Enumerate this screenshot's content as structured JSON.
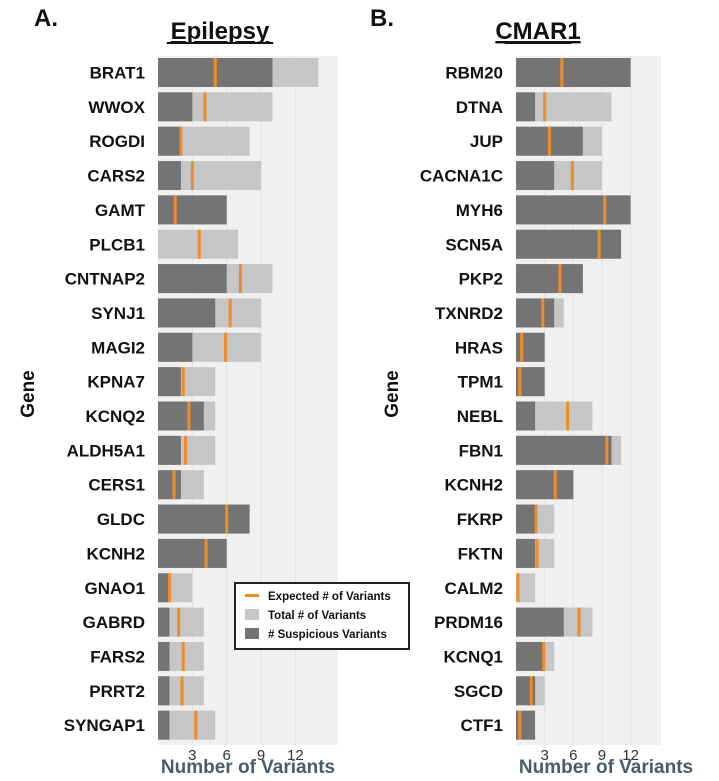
{
  "chart_data": [
    {
      "panel_label": "A.",
      "title": "Epilepsy",
      "type": "bar",
      "orientation": "horizontal",
      "xlabel": "Number of Variants",
      "ylabel": "Gene",
      "xticks": [
        3,
        6,
        9,
        12
      ],
      "xlim": [
        0,
        15.5
      ],
      "categories": [
        "BRAT1",
        "WWOX",
        "ROGDI",
        "CARS2",
        "GAMT",
        "PLCB1",
        "CNTNAP2",
        "SYNJ1",
        "MAGI2",
        "KPNA7",
        "KCNQ2",
        "ALDH5A1",
        "CERS1",
        "GLDC",
        "KCNH2",
        "GNAO1",
        "GABRD",
        "FARS2",
        "PRRT2",
        "SYNGAP1"
      ],
      "series": [
        {
          "name": "Total # of Variants",
          "values": [
            14,
            10,
            8,
            9,
            6,
            7,
            10,
            9,
            9,
            5,
            5,
            5,
            4,
            8,
            6,
            3,
            4,
            4,
            4,
            5
          ]
        },
        {
          "name": "# Suspicious Variants",
          "values": [
            10,
            3,
            2,
            2,
            6,
            0,
            6,
            5,
            3,
            2,
            4,
            2,
            2,
            8,
            6,
            1,
            1,
            1,
            1,
            1
          ]
        },
        {
          "name": "Expected # of Variants",
          "values": [
            5.0,
            4.1,
            2.0,
            3.0,
            1.5,
            3.6,
            7.2,
            6.3,
            5.9,
            2.2,
            2.7,
            2.4,
            1.4,
            6.0,
            4.2,
            1.0,
            1.8,
            2.2,
            2.1,
            3.3
          ]
        }
      ]
    },
    {
      "panel_label": "B.",
      "title": "CMAR1",
      "type": "bar",
      "orientation": "horizontal",
      "xlabel": "Number of Variants",
      "ylabel": "Gene",
      "xticks": [
        3,
        6,
        9,
        12
      ],
      "xlim": [
        0,
        15.5
      ],
      "categories": [
        "RBM20",
        "DTNA",
        "JUP",
        "CACNA1C",
        "MYH6",
        "SCN5A",
        "PKP2",
        "TXNRD2",
        "HRAS",
        "TPM1",
        "NEBL",
        "FBN1",
        "KCNH2",
        "FKRP",
        "FKTN",
        "CALM2",
        "PRDM16",
        "KCNQ1",
        "SGCD",
        "CTF1"
      ],
      "series": [
        {
          "name": "Total # of Variants",
          "values": [
            12,
            10,
            9,
            9,
            12,
            11,
            7,
            5,
            3,
            3,
            8,
            11,
            6,
            4,
            4,
            2,
            8,
            4,
            3,
            2
          ]
        },
        {
          "name": "# Suspicious Variants",
          "values": [
            12,
            2,
            7,
            4,
            12,
            11,
            7,
            4,
            3,
            3,
            2,
            10,
            6,
            2,
            2,
            0,
            5,
            3,
            2,
            2
          ]
        },
        {
          "name": "Expected # of Variants",
          "values": [
            4.8,
            3.0,
            3.5,
            5.9,
            9.3,
            8.7,
            4.6,
            2.8,
            0.6,
            0.4,
            5.4,
            9.5,
            4.1,
            2.1,
            2.2,
            0.2,
            6.6,
            2.9,
            1.6,
            0.4
          ]
        }
      ]
    }
  ],
  "legend": {
    "items": [
      {
        "label": "Expected # of Variants",
        "color": "#f08c28"
      },
      {
        "label": "Total # of Variants",
        "color": "#c6c6c6"
      },
      {
        "label": "# Suspicious Variants",
        "color": "#747474"
      }
    ]
  },
  "colors": {
    "total": "#c6c6c6",
    "suspicious": "#747474",
    "expected": "#f08c28",
    "panel_background": "#f0f0f0",
    "grid": "#e2e2e2"
  }
}
